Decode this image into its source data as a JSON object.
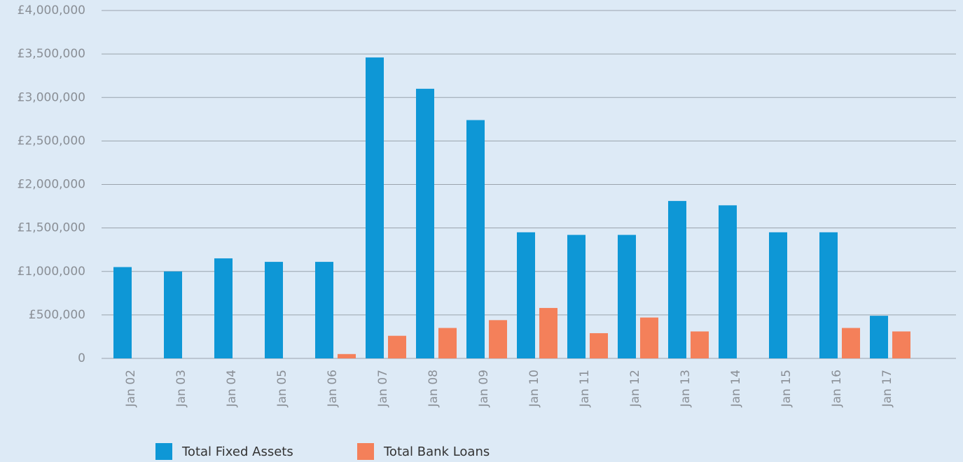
{
  "chart_data": {
    "type": "bar",
    "categories": [
      "Jan 02",
      "Jan 03",
      "Jan 04",
      "Jan 05",
      "Jan 06",
      "Jan 07",
      "Jan 08",
      "Jan 09",
      "Jan 10",
      "Jan 11",
      "Jan 12",
      "Jan 13",
      "Jan 14",
      "Jan 15",
      "Jan 16",
      "Jan 17"
    ],
    "series": [
      {
        "name": "Total Fixed Assets",
        "color": "#0e97d6",
        "values": [
          1050000,
          1000000,
          1150000,
          1110000,
          1110000,
          3460000,
          3100000,
          2740000,
          1450000,
          1420000,
          1420000,
          1810000,
          1760000,
          1450000,
          1450000,
          490000
        ]
      },
      {
        "name": "Total Bank Loans",
        "color": "#f4805a",
        "values": [
          0,
          0,
          0,
          0,
          50000,
          260000,
          350000,
          440000,
          580000,
          290000,
          470000,
          310000,
          0,
          0,
          350000,
          310000
        ]
      }
    ],
    "ylim": [
      0,
      4000000
    ],
    "yticks": [
      0,
      {
        "value": 500000,
        "label": "£500,000"
      },
      {
        "value": 1000000,
        "label": "£1,000,000"
      },
      {
        "value": 1500000,
        "label": "£1,500,000"
      },
      {
        "value": 2000000,
        "label": "£2,000,000"
      },
      {
        "value": 2500000,
        "label": "£2,500,000"
      },
      {
        "value": 3000000,
        "label": "£3,000,000"
      },
      {
        "value": 3500000,
        "label": "£3,500,000"
      },
      {
        "value": 4000000,
        "label": "£4,000,000"
      }
    ],
    "grid": true,
    "legend": "bottom"
  }
}
